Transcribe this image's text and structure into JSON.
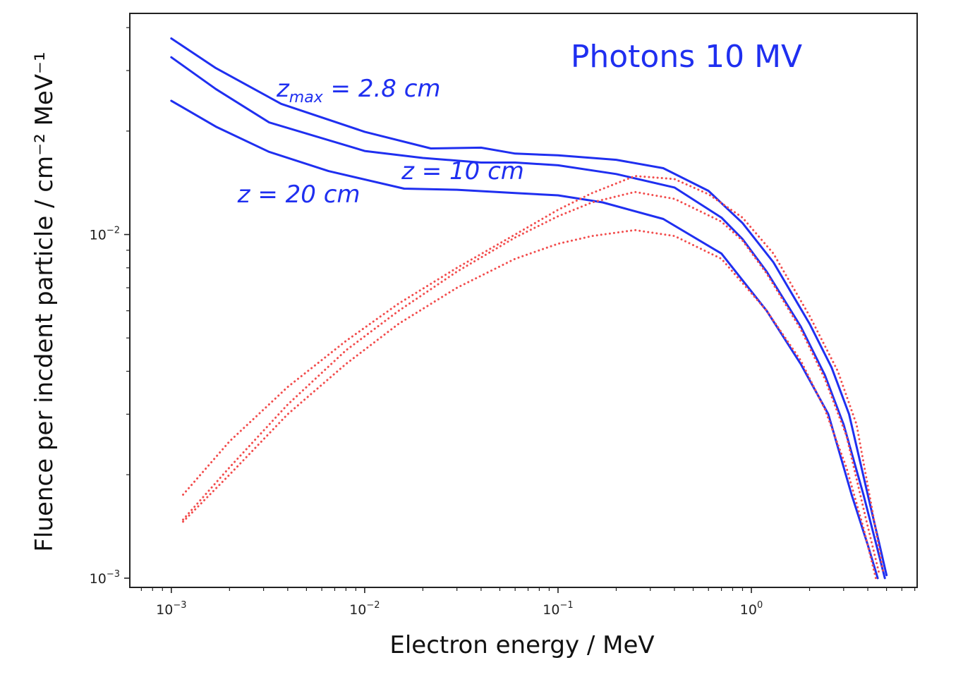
{
  "chart_data": {
    "type": "line",
    "title": "Photons 10 MV",
    "xlabel": "Electron energy / MeV",
    "ylabel": "Fluence per incdent particle / cm⁻² MeV⁻¹",
    "xscale": "log",
    "yscale": "log",
    "xlim": [
      0.00061,
      7.2
    ],
    "ylim": [
      0.00094,
      0.044
    ],
    "grid": false,
    "x_ticks": [
      {
        "value": 0.001,
        "base": "10",
        "exp": "−3"
      },
      {
        "value": 0.01,
        "base": "10",
        "exp": "−2"
      },
      {
        "value": 0.1,
        "base": "10",
        "exp": "−1"
      },
      {
        "value": 1,
        "base": "10",
        "exp": "0"
      }
    ],
    "y_ticks": [
      {
        "value": 0.01,
        "base": "10",
        "exp": "−2"
      },
      {
        "value": 0.001,
        "base": "10",
        "exp": "−3"
      }
    ],
    "colors": {
      "solid": "#1f2ff0",
      "dotted": "#f24d4d",
      "frame": "#222222"
    },
    "annotations": [
      {
        "text_main": "z",
        "text_sub": "max",
        "text_rest": " = 2.8 cm",
        "x": 0.0035,
        "y": 0.0252
      },
      {
        "text_main": "z = 10 cm",
        "text_sub": "",
        "text_rest": "",
        "x": 0.0155,
        "y": 0.0145
      },
      {
        "text_main": "z = 20 cm",
        "text_sub": "",
        "text_rest": "",
        "x": 0.0022,
        "y": 0.0124
      }
    ],
    "series": [
      {
        "style": "solid",
        "x": [
          0.001,
          0.0017,
          0.0037,
          0.01,
          0.022,
          0.04,
          0.06,
          0.1,
          0.2,
          0.35,
          0.6,
          0.9,
          1.3,
          2.0,
          2.6,
          3.2,
          4.0,
          4.6,
          5.0
        ],
        "y": [
          0.0372,
          0.0305,
          0.024,
          0.0199,
          0.0178,
          0.0179,
          0.0172,
          0.017,
          0.0165,
          0.0156,
          0.0134,
          0.0108,
          0.0083,
          0.0055,
          0.0041,
          0.003,
          0.00175,
          0.00125,
          0.00102
        ]
      },
      {
        "style": "solid",
        "x": [
          0.001,
          0.0017,
          0.0032,
          0.01,
          0.02,
          0.04,
          0.06,
          0.1,
          0.2,
          0.4,
          0.7,
          0.9,
          1.2,
          1.8,
          2.4,
          3.0,
          3.8,
          4.6,
          4.9
        ],
        "y": [
          0.0328,
          0.0265,
          0.0212,
          0.0175,
          0.0167,
          0.0162,
          0.0162,
          0.0159,
          0.015,
          0.0137,
          0.0112,
          0.0097,
          0.0078,
          0.0054,
          0.0039,
          0.0028,
          0.00175,
          0.00115,
          0.001
        ]
      },
      {
        "style": "solid",
        "x": [
          0.001,
          0.0017,
          0.0032,
          0.0065,
          0.016,
          0.03,
          0.06,
          0.1,
          0.17,
          0.35,
          0.7,
          1.2,
          1.8,
          2.5,
          3.3,
          4.0,
          4.5
        ],
        "y": [
          0.0245,
          0.0206,
          0.0174,
          0.0153,
          0.0136,
          0.0135,
          0.0132,
          0.013,
          0.0124,
          0.0111,
          0.0088,
          0.006,
          0.0042,
          0.003,
          0.00175,
          0.00125,
          0.001
        ]
      },
      {
        "style": "dotted",
        "x": [
          0.00115,
          0.002,
          0.004,
          0.008,
          0.015,
          0.03,
          0.06,
          0.1,
          0.15,
          0.25,
          0.4,
          0.6,
          0.9,
          1.3,
          2.0,
          2.8,
          3.5,
          4.2,
          4.8
        ],
        "y": [
          0.00175,
          0.0025,
          0.0036,
          0.0049,
          0.0063,
          0.008,
          0.01,
          0.0118,
          0.0132,
          0.0148,
          0.0145,
          0.0131,
          0.0112,
          0.0088,
          0.0058,
          0.004,
          0.0028,
          0.0016,
          0.00105
        ]
      },
      {
        "style": "dotted",
        "x": [
          0.00115,
          0.002,
          0.004,
          0.008,
          0.015,
          0.03,
          0.06,
          0.1,
          0.15,
          0.25,
          0.4,
          0.7,
          0.9,
          1.2,
          1.8,
          2.4,
          3.1,
          3.9,
          4.6
        ],
        "y": [
          0.00148,
          0.0021,
          0.0032,
          0.0046,
          0.006,
          0.0078,
          0.0098,
          0.0113,
          0.0124,
          0.0133,
          0.0127,
          0.0109,
          0.0096,
          0.0077,
          0.0053,
          0.0038,
          0.0026,
          0.0015,
          0.00102
        ]
      },
      {
        "style": "dotted",
        "x": [
          0.00115,
          0.002,
          0.004,
          0.008,
          0.015,
          0.03,
          0.06,
          0.1,
          0.15,
          0.25,
          0.4,
          0.7,
          1.2,
          1.8,
          2.4,
          3.1,
          3.8,
          4.4
        ],
        "y": [
          0.00146,
          0.002,
          0.003,
          0.0042,
          0.0055,
          0.007,
          0.0085,
          0.0094,
          0.0099,
          0.0103,
          0.0099,
          0.0085,
          0.006,
          0.0043,
          0.0031,
          0.0021,
          0.0014,
          0.001
        ]
      }
    ]
  }
}
